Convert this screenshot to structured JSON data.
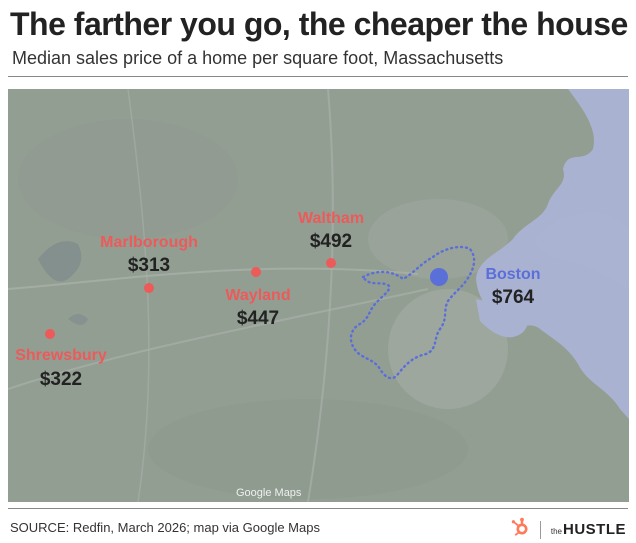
{
  "title": "The farther you go, the cheaper the house",
  "subtitle": "Median sales price of a home per square foot, Massachusetts",
  "map": {
    "watermark": "Google Maps",
    "accent_color": "#ec5a5a",
    "boston_color": "#5a6fd8",
    "cities": [
      {
        "name": "Shrewsbury",
        "price": "$322"
      },
      {
        "name": "Marlborough",
        "price": "$313"
      },
      {
        "name": "Wayland",
        "price": "$447"
      },
      {
        "name": "Waltham",
        "price": "$492"
      },
      {
        "name": "Boston",
        "price": "$764"
      }
    ]
  },
  "footer": {
    "source": "SOURCE: Redfin, March 2026; map via Google Maps",
    "brand_small": "the",
    "brand_big": "HUSTLE",
    "logo_icon": "hubspot-sprocket-icon",
    "logo_color": "#ff7a59"
  }
}
